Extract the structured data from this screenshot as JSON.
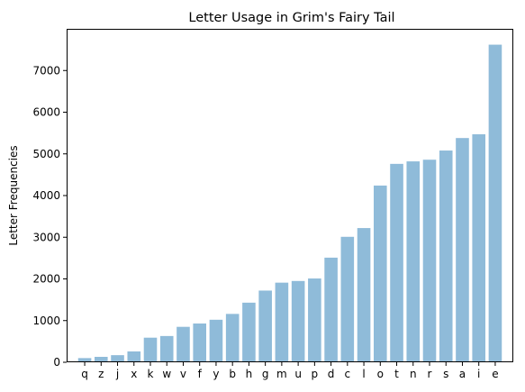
{
  "chart_data": {
    "type": "bar",
    "title": "Letter Usage in Grim's Fairy Tail",
    "xlabel": "",
    "ylabel": "Letter Frequencies",
    "categories": [
      "q",
      "z",
      "j",
      "x",
      "k",
      "w",
      "v",
      "f",
      "y",
      "b",
      "h",
      "g",
      "m",
      "u",
      "p",
      "d",
      "c",
      "l",
      "o",
      "t",
      "n",
      "r",
      "s",
      "a",
      "i",
      "e"
    ],
    "values": [
      100,
      130,
      170,
      260,
      590,
      630,
      850,
      930,
      1020,
      1160,
      1430,
      1720,
      1910,
      1950,
      2010,
      2510,
      3010,
      3220,
      4240,
      4760,
      4820,
      4860,
      5080,
      5380,
      5470,
      7620
    ],
    "ylim": [
      0,
      8000
    ],
    "yticks": [
      0,
      1000,
      2000,
      3000,
      4000,
      5000,
      6000,
      7000
    ],
    "grid": false,
    "bar_color": "#8fbbd9"
  }
}
